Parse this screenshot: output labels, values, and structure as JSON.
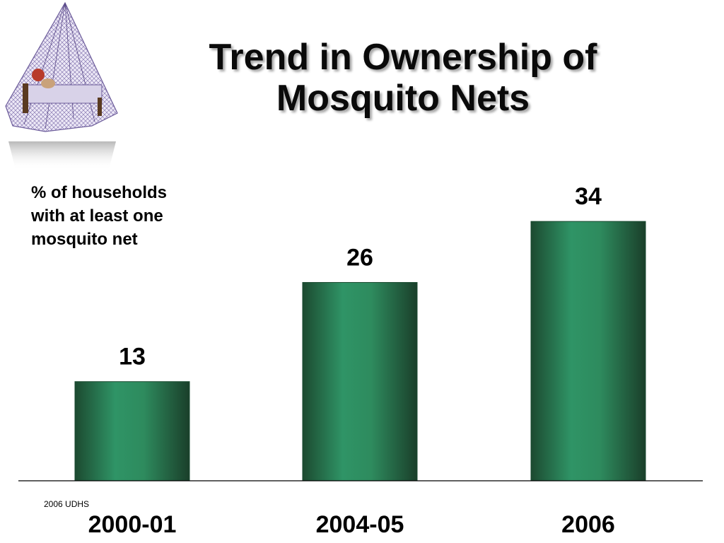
{
  "slide": {
    "title": "Trend in Ownership of Mosquito Nets",
    "source_note": "2006 UDHS"
  },
  "chart_data": {
    "type": "bar",
    "categories": [
      "2000-01",
      "2004-05",
      "2006"
    ],
    "values": [
      13,
      26,
      34
    ],
    "title": "Trend in Ownership of Mosquito Nets",
    "ylabel": "% of households with at least one mosquito net",
    "xlabel": "",
    "ylim": [
      0,
      38
    ],
    "grid": false,
    "bar_color": "#2e8b57",
    "bar_edge_color": "#1a4a30"
  },
  "logo": {
    "icon": "mosquito-net-illustration-icon"
  }
}
